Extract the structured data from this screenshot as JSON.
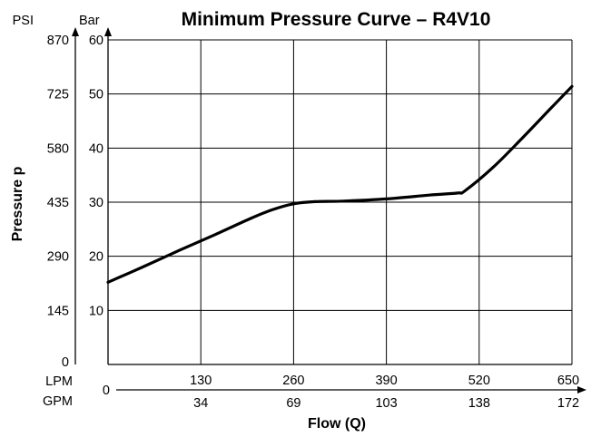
{
  "chart_data": {
    "type": "line",
    "title": "Minimum Pressure Curve – R4V10",
    "xlabel": "Flow (Q)",
    "ylabel": "Pressure p",
    "x_primary_unit": "LPM",
    "x_secondary_unit": "GPM",
    "y_primary_unit": "Bar",
    "y_secondary_unit": "PSI",
    "xlim": [
      0,
      650
    ],
    "ylim": [
      0,
      60
    ],
    "grid": true,
    "x_ticks_lpm": [
      {
        "value": 0,
        "label": "0"
      },
      {
        "value": 130,
        "label": "130"
      },
      {
        "value": 260,
        "label": "260"
      },
      {
        "value": 390,
        "label": "390"
      },
      {
        "value": 520,
        "label": "520"
      },
      {
        "value": 650,
        "label": "650"
      }
    ],
    "x_ticks_gpm": [
      {
        "value": 130,
        "label": "34"
      },
      {
        "value": 260,
        "label": "69"
      },
      {
        "value": 390,
        "label": "103"
      },
      {
        "value": 520,
        "label": "138"
      },
      {
        "value": 650,
        "label": "172"
      }
    ],
    "y_ticks_bar": [
      {
        "value": 10,
        "label": "10"
      },
      {
        "value": 20,
        "label": "20"
      },
      {
        "value": 30,
        "label": "30"
      },
      {
        "value": 40,
        "label": "40"
      },
      {
        "value": 50,
        "label": "50"
      },
      {
        "value": 60,
        "label": "60"
      }
    ],
    "y_ticks_psi": [
      {
        "value": 0,
        "label": "0"
      },
      {
        "value": 10,
        "label": "145"
      },
      {
        "value": 20,
        "label": "290"
      },
      {
        "value": 30,
        "label": "435"
      },
      {
        "value": 40,
        "label": "580"
      },
      {
        "value": 50,
        "label": "725"
      },
      {
        "value": 60,
        "label": "870"
      }
    ],
    "series": [
      {
        "x": [
          0,
          50,
          100,
          150,
          200,
          230,
          260,
          290,
          330,
          390,
          450,
          490,
          500,
          540,
          580,
          620,
          650
        ],
        "y": [
          15.2,
          18.1,
          21.1,
          24.0,
          27.0,
          28.6,
          29.7,
          30.1,
          30.2,
          30.6,
          31.3,
          31.7,
          32.1,
          36.5,
          41.8,
          47.3,
          51.4
        ]
      }
    ]
  }
}
